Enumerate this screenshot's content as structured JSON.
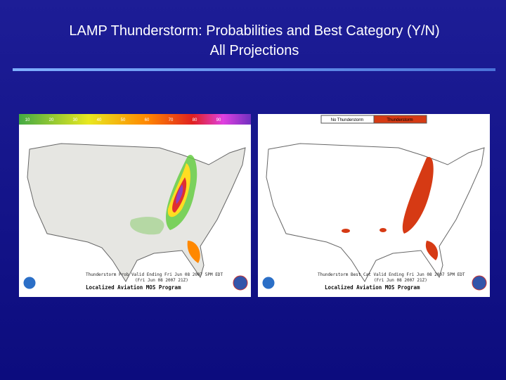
{
  "header": {
    "title_line1": "LAMP Thunderstorm: Probabilities and Best Category (Y/N)",
    "title_line2": "All Projections"
  },
  "left_map": {
    "legend_labels": [
      "10",
      "20",
      "30",
      "40",
      "50",
      "60",
      "70",
      "80",
      "90"
    ],
    "caption": "Thunderstorm Prob Valid Ending Fri Jun 08 2007 5PM EDT",
    "subcaption": "(Fri Jun 08 2007 21Z)",
    "program": "Localized Aviation MOS Program"
  },
  "right_map": {
    "legend_labels": [
      "No Thunderstorm",
      "Thunderstorm"
    ],
    "caption": "Thunderstorm Best Cat Valid Ending Fri Jun 08 2007 5PM EDT",
    "subcaption": "(Fri Jun 08 2007 21Z)",
    "program": "Localized Aviation MOS Program"
  }
}
